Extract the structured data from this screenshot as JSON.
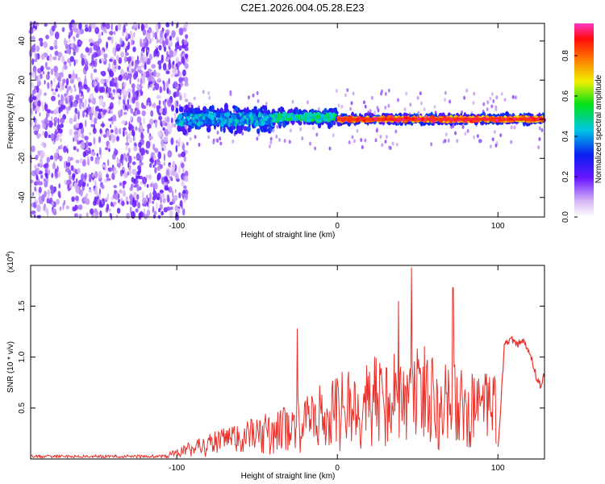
{
  "title": "C2E1.2026.004.05.28.E23",
  "chart_data": [
    {
      "type": "heatmap",
      "xlabel": "Height of straight line (km)",
      "ylabel": "Frequency (Hz)",
      "xlim": [
        -191,
        129
      ],
      "ylim": [
        -50,
        49
      ],
      "xticks": [
        -100,
        0,
        100
      ],
      "xtick_labels": [
        "-100",
        "0",
        "100"
      ],
      "yticks": [
        40,
        20,
        0,
        -20,
        -40
      ],
      "ytick_labels": [
        "40",
        "20",
        "0",
        "-20",
        "-40"
      ],
      "colorbar": {
        "label": "Normalized spectral amplitude",
        "range": [
          0,
          0.96
        ],
        "ticks": [
          0.8,
          0.6,
          0.4,
          0.2,
          0.0
        ],
        "tick_labels": [
          "0.8",
          "0.6",
          "0.4",
          "0.2",
          "0.0"
        ]
      },
      "noise_region_x": [
        -191,
        -100
      ],
      "signal_band": [
        {
          "x_from": -100,
          "x_to": -40,
          "center_hz": 0,
          "half_width_hz": 8,
          "amplitude": 0.45
        },
        {
          "x_from": -40,
          "x_to": 0,
          "center_hz": 1,
          "half_width_hz": 5,
          "amplitude": 0.55
        },
        {
          "x_from": 0,
          "x_to": 129,
          "center_hz": 0,
          "half_width_hz": 2.5,
          "amplitude": 0.9
        }
      ]
    },
    {
      "type": "line",
      "xlabel": "Height of straight line (km)",
      "ylabel": "SNR (10 * v/v)",
      "scale_label": "(x10",
      "scale_exp": "4",
      "scale_close": ")",
      "xlim": [
        -191,
        129
      ],
      "ylim": [
        0,
        1.9
      ],
      "xticks": [
        -100,
        0,
        100
      ],
      "xtick_labels": [
        "-100",
        "0",
        "100"
      ],
      "yticks": [
        0.5,
        1.0,
        1.5
      ],
      "ytick_labels": [
        "0.5",
        "1.0",
        "1.5"
      ],
      "color": "#e8322c",
      "envelope": [
        {
          "x": -191,
          "y": 0.02
        },
        {
          "x": -110,
          "y": 0.03
        },
        {
          "x": -100,
          "y": 0.1
        },
        {
          "x": -80,
          "y": 0.25
        },
        {
          "x": -60,
          "y": 0.35
        },
        {
          "x": -40,
          "y": 0.45
        },
        {
          "x": -20,
          "y": 0.6
        },
        {
          "x": 0,
          "y": 0.8
        },
        {
          "x": 20,
          "y": 0.95
        },
        {
          "x": 40,
          "y": 1.05
        },
        {
          "x": 60,
          "y": 1.1
        },
        {
          "x": 80,
          "y": 0.8
        },
        {
          "x": 100,
          "y": 0.8
        },
        {
          "x": 129,
          "y": 0.8
        }
      ],
      "peaks": [
        {
          "x": -25,
          "y": 1.28
        },
        {
          "x": 38,
          "y": 1.55
        },
        {
          "x": 46,
          "y": 1.88
        },
        {
          "x": 72,
          "y": 1.68
        },
        {
          "x": 99,
          "y": 0.15
        },
        {
          "x": 108,
          "y": 1.2
        },
        {
          "x": 118,
          "y": 1.15
        }
      ],
      "smooth_segment": [
        {
          "x": 100,
          "y": 0.1
        },
        {
          "x": 104,
          "y": 1.1
        },
        {
          "x": 108,
          "y": 1.18
        },
        {
          "x": 112,
          "y": 1.12
        },
        {
          "x": 116,
          "y": 1.15
        },
        {
          "x": 120,
          "y": 1.05
        },
        {
          "x": 124,
          "y": 0.8
        },
        {
          "x": 127,
          "y": 0.7
        },
        {
          "x": 129,
          "y": 0.85
        }
      ]
    }
  ]
}
